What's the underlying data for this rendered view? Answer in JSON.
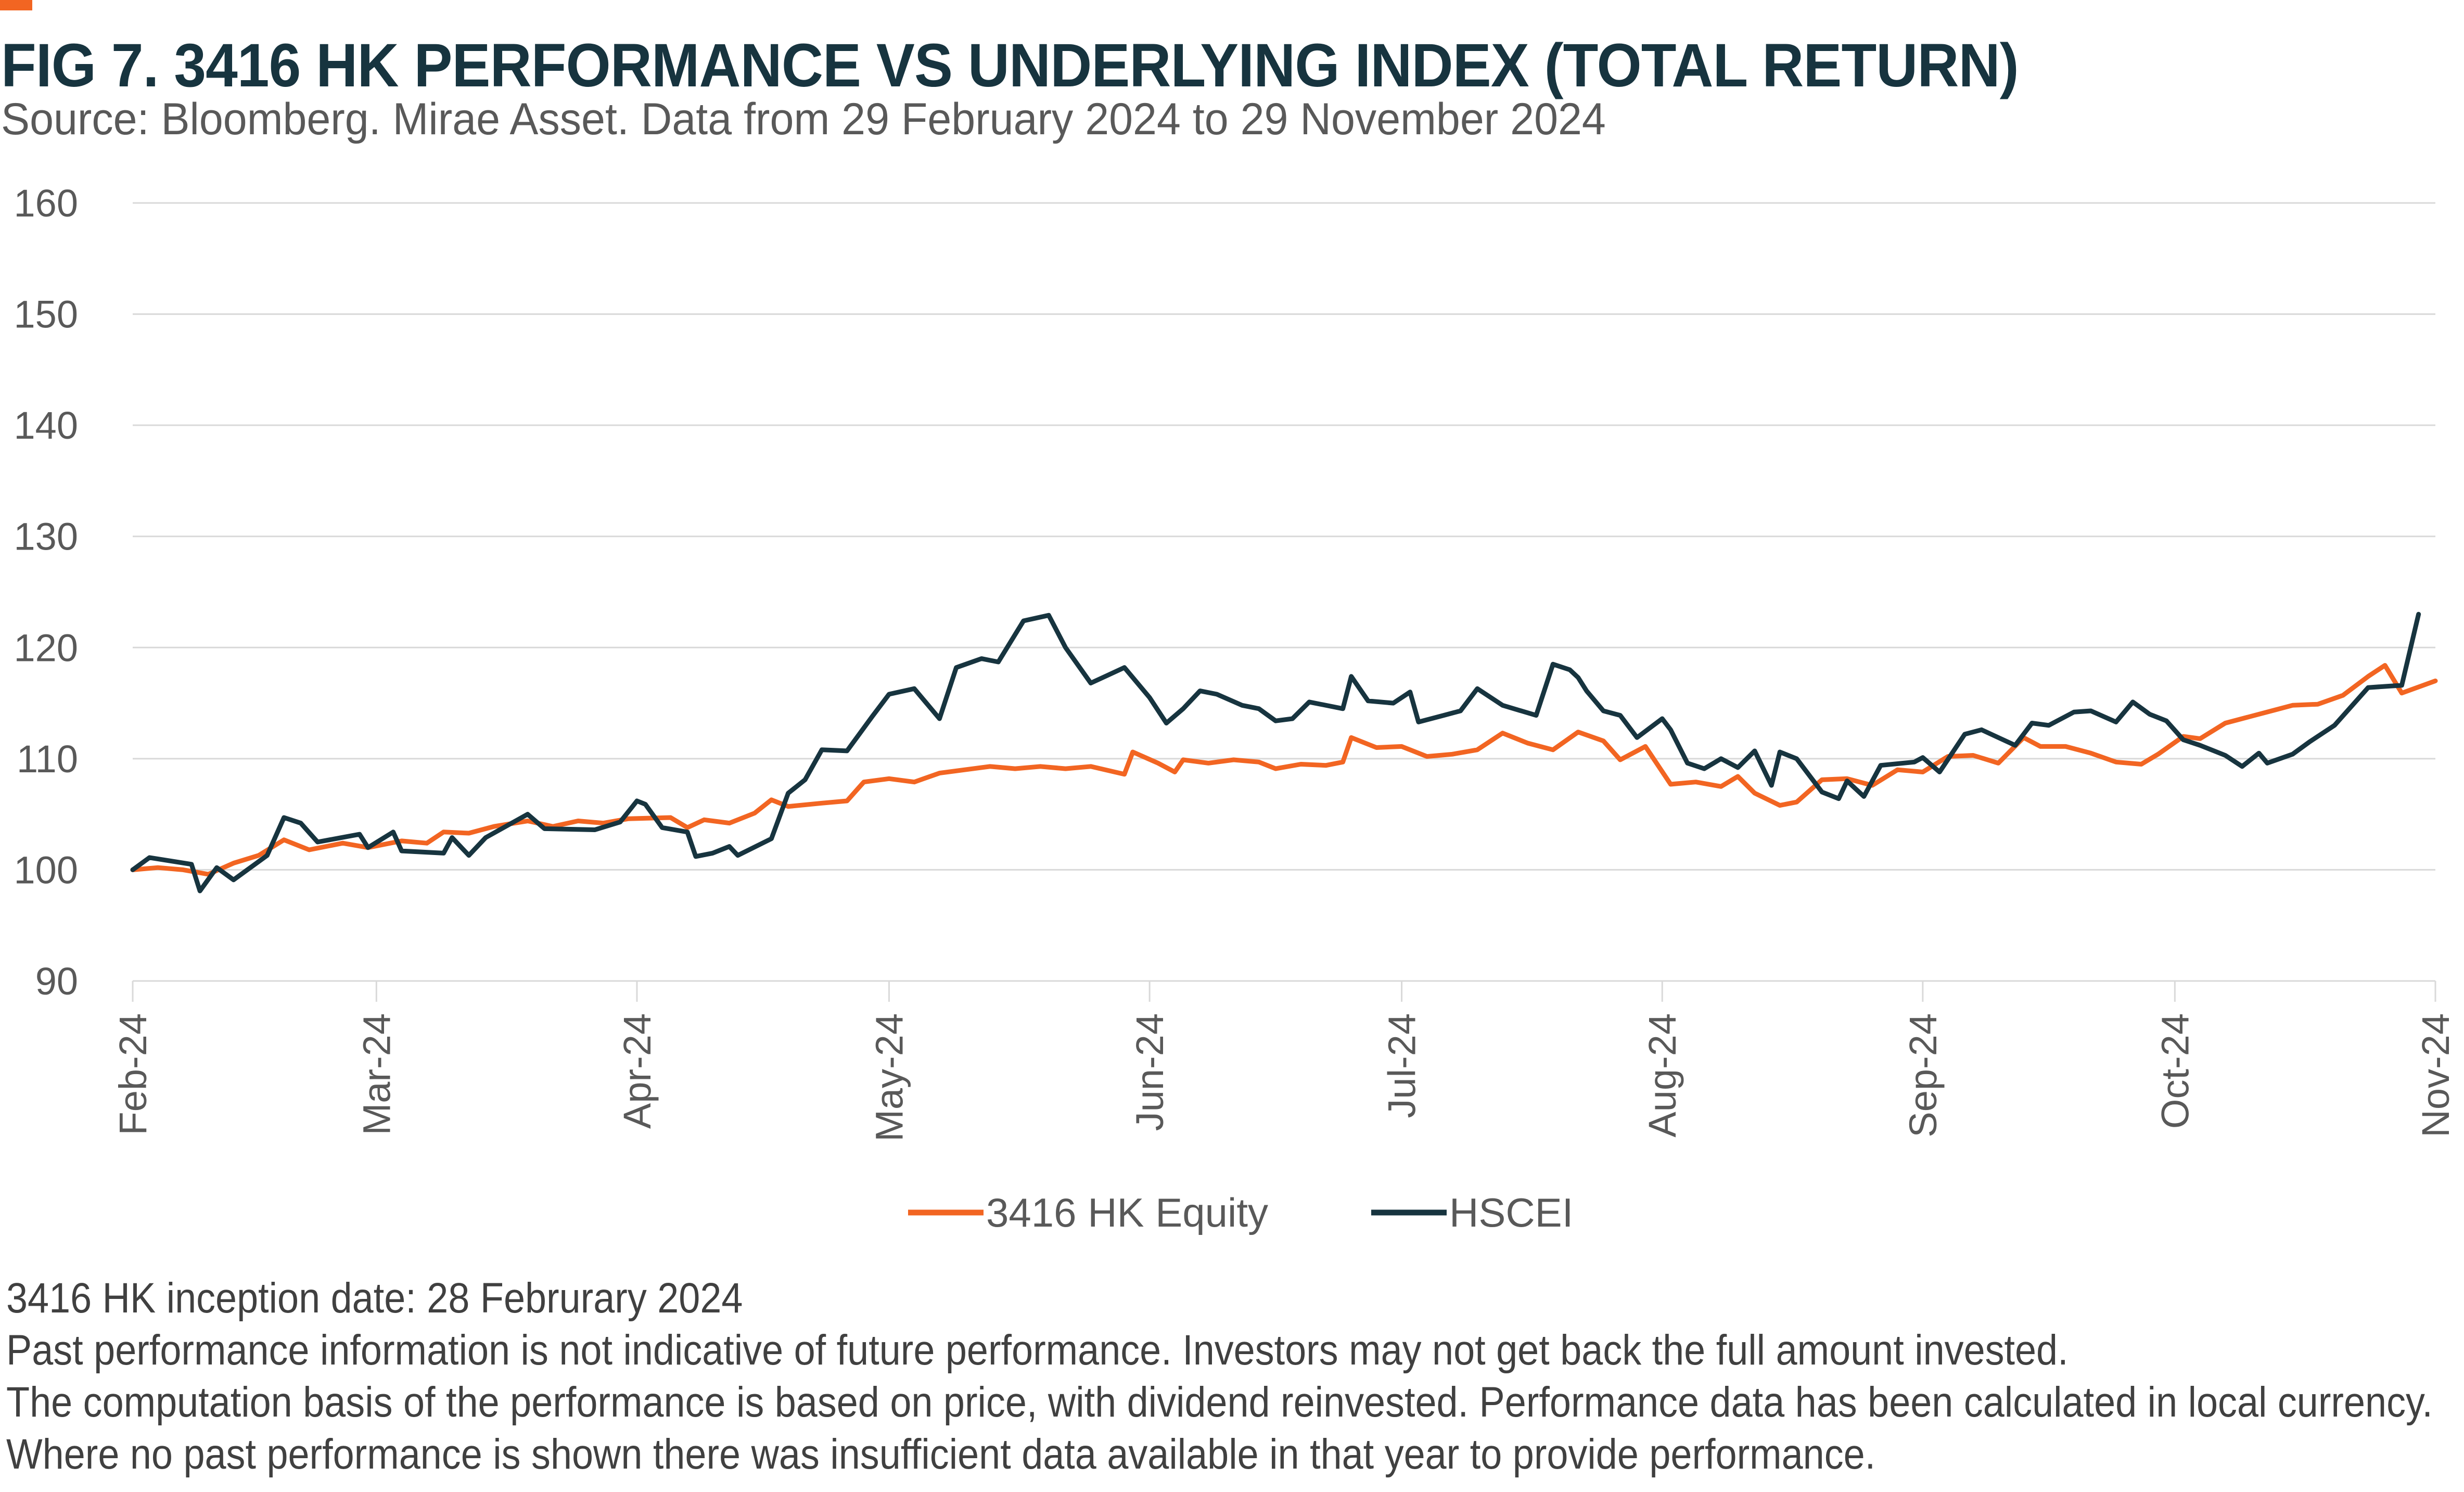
{
  "title": "FIG 7. 3416 HK PERFORMANCE VS UNDERLYING INDEX (TOTAL RETURN)",
  "subtitle": "Source: Bloomberg. Mirae Asset. Data from 29 February 2024 to 29 November 2024",
  "colors": {
    "accent": "#F26522",
    "equity": "#F26522",
    "index": "#17343F",
    "grid": "#D9D9D9",
    "text": "#595959"
  },
  "chart_data": {
    "type": "line",
    "title": "FIG 7. 3416 HK PERFORMANCE VS UNDERLYING INDEX (TOTAL RETURN)",
    "xlabel": "",
    "ylabel": "",
    "ylim": [
      90,
      160
    ],
    "yticks": [
      90,
      100,
      110,
      120,
      130,
      140,
      150,
      160
    ],
    "xlim": [
      "2024-02-29",
      "2024-11-29"
    ],
    "xticks": [
      {
        "date": "2024-02-29",
        "label": "Feb-24"
      },
      {
        "date": "2024-03-29",
        "label": "Mar-24"
      },
      {
        "date": "2024-04-29",
        "label": "Apr-24"
      },
      {
        "date": "2024-05-29",
        "label": "May-24"
      },
      {
        "date": "2024-06-29",
        "label": "Jun-24"
      },
      {
        "date": "2024-07-29",
        "label": "Jul-24"
      },
      {
        "date": "2024-08-29",
        "label": "Aug-24"
      },
      {
        "date": "2024-09-29",
        "label": "Sep-24"
      },
      {
        "date": "2024-10-29",
        "label": "Oct-24"
      },
      {
        "date": "2024-11-29",
        "label": "Nov-24"
      }
    ],
    "grid": true,
    "legend_position": "bottom",
    "series": [
      {
        "name": "3416 HK Equity",
        "color": "#F26522",
        "points": [
          [
            "2024-02-29",
            100.0
          ],
          [
            "2024-03-03",
            100.2
          ],
          [
            "2024-03-06",
            100.0
          ],
          [
            "2024-03-09",
            99.6
          ],
          [
            "2024-03-12",
            100.6
          ],
          [
            "2024-03-15",
            101.3
          ],
          [
            "2024-03-18",
            102.7
          ],
          [
            "2024-03-21",
            101.8
          ],
          [
            "2024-03-25",
            102.4
          ],
          [
            "2024-03-28",
            102.0
          ],
          [
            "2024-04-01",
            102.6
          ],
          [
            "2024-04-04",
            102.4
          ],
          [
            "2024-04-06",
            103.4
          ],
          [
            "2024-04-09",
            103.3
          ],
          [
            "2024-04-12",
            103.9
          ],
          [
            "2024-04-16",
            104.4
          ],
          [
            "2024-04-19",
            103.9
          ],
          [
            "2024-04-22",
            104.4
          ],
          [
            "2024-04-25",
            104.2
          ],
          [
            "2024-04-28",
            104.6
          ],
          [
            "2024-05-03",
            104.7
          ],
          [
            "2024-05-05",
            103.8
          ],
          [
            "2024-05-07",
            104.5
          ],
          [
            "2024-05-10",
            104.2
          ],
          [
            "2024-05-13",
            105.1
          ],
          [
            "2024-05-15",
            106.3
          ],
          [
            "2024-05-17",
            105.7
          ],
          [
            "2024-05-21",
            106.0
          ],
          [
            "2024-05-24",
            106.2
          ],
          [
            "2024-05-26",
            107.9
          ],
          [
            "2024-05-29",
            108.2
          ],
          [
            "2024-06-01",
            107.9
          ],
          [
            "2024-06-04",
            108.7
          ],
          [
            "2024-06-07",
            109.0
          ],
          [
            "2024-06-10",
            109.3
          ],
          [
            "2024-06-13",
            109.1
          ],
          [
            "2024-06-16",
            109.3
          ],
          [
            "2024-06-19",
            109.1
          ],
          [
            "2024-06-22",
            109.3
          ],
          [
            "2024-06-26",
            108.6
          ],
          [
            "2024-06-27",
            110.6
          ],
          [
            "2024-06-30",
            109.6
          ],
          [
            "2024-07-02",
            108.8
          ],
          [
            "2024-07-03",
            109.9
          ],
          [
            "2024-07-06",
            109.6
          ],
          [
            "2024-07-09",
            109.9
          ],
          [
            "2024-07-12",
            109.7
          ],
          [
            "2024-07-14",
            109.1
          ],
          [
            "2024-07-17",
            109.5
          ],
          [
            "2024-07-20",
            109.4
          ],
          [
            "2024-07-22",
            109.7
          ],
          [
            "2024-07-23",
            111.9
          ],
          [
            "2024-07-26",
            111.0
          ],
          [
            "2024-07-29",
            111.1
          ],
          [
            "2024-08-01",
            110.2
          ],
          [
            "2024-08-04",
            110.4
          ],
          [
            "2024-08-07",
            110.8
          ],
          [
            "2024-08-10",
            112.3
          ],
          [
            "2024-08-13",
            111.4
          ],
          [
            "2024-08-16",
            110.8
          ],
          [
            "2024-08-19",
            112.4
          ],
          [
            "2024-08-22",
            111.6
          ],
          [
            "2024-08-24",
            109.9
          ],
          [
            "2024-08-27",
            111.1
          ],
          [
            "2024-08-30",
            107.7
          ],
          [
            "2024-09-02",
            107.9
          ],
          [
            "2024-09-05",
            107.5
          ],
          [
            "2024-09-07",
            108.4
          ],
          [
            "2024-09-09",
            106.9
          ],
          [
            "2024-09-12",
            105.8
          ],
          [
            "2024-09-14",
            106.1
          ],
          [
            "2024-09-17",
            108.1
          ],
          [
            "2024-09-20",
            108.2
          ],
          [
            "2024-09-23",
            107.6
          ],
          [
            "2024-09-26",
            109.0
          ],
          [
            "2024-09-29",
            108.8
          ],
          [
            "2024-10-02",
            110.2
          ],
          [
            "2024-10-05",
            110.3
          ],
          [
            "2024-10-08",
            109.6
          ],
          [
            "2024-10-11",
            111.9
          ],
          [
            "2024-10-13",
            111.1
          ],
          [
            "2024-10-16",
            111.1
          ],
          [
            "2024-10-19",
            110.5
          ],
          [
            "2024-10-22",
            109.7
          ],
          [
            "2024-10-25",
            109.5
          ],
          [
            "2024-10-27",
            110.4
          ],
          [
            "2024-10-30",
            112.0
          ],
          [
            "2024-11-01",
            111.8
          ],
          [
            "2024-11-04",
            113.2
          ],
          [
            "2024-11-07",
            113.8
          ],
          [
            "2024-11-10",
            114.4
          ],
          [
            "2024-11-12",
            114.8
          ],
          [
            "2024-11-15",
            114.9
          ],
          [
            "2024-11-18",
            115.7
          ],
          [
            "2024-11-21",
            117.4
          ],
          [
            "2024-11-23",
            118.4
          ],
          [
            "2024-11-25",
            115.9
          ],
          [
            "2024-11-29",
            117.0
          ]
        ]
      },
      {
        "name": "HSCEI",
        "color": "#17343F",
        "points": [
          [
            "2024-02-29",
            100.0
          ],
          [
            "2024-03-02",
            101.1
          ],
          [
            "2024-03-07",
            100.5
          ],
          [
            "2024-03-08",
            98.1
          ],
          [
            "2024-03-10",
            100.2
          ],
          [
            "2024-03-12",
            99.1
          ],
          [
            "2024-03-16",
            101.3
          ],
          [
            "2024-03-18",
            104.7
          ],
          [
            "2024-03-20",
            104.2
          ],
          [
            "2024-03-22",
            102.5
          ],
          [
            "2024-03-27",
            103.2
          ],
          [
            "2024-03-28",
            102.0
          ],
          [
            "2024-03-31",
            103.4
          ],
          [
            "2024-04-01",
            101.7
          ],
          [
            "2024-04-06",
            101.5
          ],
          [
            "2024-04-07",
            102.9
          ],
          [
            "2024-04-09",
            101.3
          ],
          [
            "2024-04-11",
            102.9
          ],
          [
            "2024-04-16",
            105.0
          ],
          [
            "2024-04-18",
            103.7
          ],
          [
            "2024-04-24",
            103.6
          ],
          [
            "2024-04-27",
            104.3
          ],
          [
            "2024-04-29",
            106.2
          ],
          [
            "2024-04-30",
            105.9
          ],
          [
            "2024-05-02",
            103.8
          ],
          [
            "2024-05-05",
            103.4
          ],
          [
            "2024-05-06",
            101.2
          ],
          [
            "2024-05-08",
            101.5
          ],
          [
            "2024-05-10",
            102.1
          ],
          [
            "2024-05-11",
            101.3
          ],
          [
            "2024-05-15",
            102.8
          ],
          [
            "2024-05-17",
            106.9
          ],
          [
            "2024-05-19",
            108.1
          ],
          [
            "2024-05-21",
            110.8
          ],
          [
            "2024-05-24",
            110.7
          ],
          [
            "2024-05-27",
            113.8
          ],
          [
            "2024-05-29",
            115.8
          ],
          [
            "2024-06-01",
            116.3
          ],
          [
            "2024-06-04",
            113.6
          ],
          [
            "2024-06-06",
            118.2
          ],
          [
            "2024-06-09",
            119.0
          ],
          [
            "2024-06-11",
            118.7
          ],
          [
            "2024-06-14",
            122.4
          ],
          [
            "2024-06-17",
            122.9
          ],
          [
            "2024-06-19",
            120.0
          ],
          [
            "2024-06-22",
            116.8
          ],
          [
            "2024-06-24",
            117.5
          ],
          [
            "2024-06-26",
            118.2
          ],
          [
            "2024-06-29",
            115.5
          ],
          [
            "2024-07-01",
            113.2
          ],
          [
            "2024-07-03",
            114.5
          ],
          [
            "2024-07-05",
            116.1
          ],
          [
            "2024-07-07",
            115.8
          ],
          [
            "2024-07-10",
            114.8
          ],
          [
            "2024-07-12",
            114.5
          ],
          [
            "2024-07-14",
            113.4
          ],
          [
            "2024-07-16",
            113.6
          ],
          [
            "2024-07-18",
            115.1
          ],
          [
            "2024-07-22",
            114.5
          ],
          [
            "2024-07-23",
            117.4
          ],
          [
            "2024-07-25",
            115.2
          ],
          [
            "2024-07-28",
            115.0
          ],
          [
            "2024-07-30",
            116.0
          ],
          [
            "2024-07-31",
            113.3
          ],
          [
            "2024-08-03",
            113.9
          ],
          [
            "2024-08-05",
            114.3
          ],
          [
            "2024-08-07",
            116.3
          ],
          [
            "2024-08-10",
            114.8
          ],
          [
            "2024-08-14",
            113.9
          ],
          [
            "2024-08-16",
            118.5
          ],
          [
            "2024-08-18",
            118.0
          ],
          [
            "2024-08-19",
            117.3
          ],
          [
            "2024-08-20",
            116.1
          ],
          [
            "2024-08-22",
            114.3
          ],
          [
            "2024-08-24",
            113.9
          ],
          [
            "2024-08-26",
            111.9
          ],
          [
            "2024-08-29",
            113.6
          ],
          [
            "2024-08-30",
            112.6
          ],
          [
            "2024-09-01",
            109.6
          ],
          [
            "2024-09-03",
            109.1
          ],
          [
            "2024-09-05",
            110.0
          ],
          [
            "2024-09-07",
            109.2
          ],
          [
            "2024-09-09",
            110.7
          ],
          [
            "2024-09-11",
            107.6
          ],
          [
            "2024-09-12",
            110.6
          ],
          [
            "2024-09-14",
            110.0
          ],
          [
            "2024-09-17",
            107.0
          ],
          [
            "2024-09-19",
            106.4
          ],
          [
            "2024-09-20",
            108.0
          ],
          [
            "2024-09-22",
            106.6
          ],
          [
            "2024-09-24",
            109.4
          ],
          [
            "2024-09-28",
            109.7
          ],
          [
            "2024-09-29",
            110.1
          ],
          [
            "2024-10-01",
            108.8
          ],
          [
            "2024-10-04",
            112.2
          ],
          [
            "2024-10-06",
            112.6
          ],
          [
            "2024-10-08",
            111.9
          ],
          [
            "2024-10-10",
            111.2
          ],
          [
            "2024-10-12",
            113.2
          ],
          [
            "2024-10-14",
            113.0
          ],
          [
            "2024-10-17",
            114.2
          ],
          [
            "2024-10-19",
            114.3
          ],
          [
            "2024-10-22",
            113.3
          ],
          [
            "2024-10-24",
            115.1
          ],
          [
            "2024-10-26",
            114.0
          ],
          [
            "2024-10-28",
            113.4
          ],
          [
            "2024-10-30",
            111.7
          ],
          [
            "2024-11-01",
            111.2
          ],
          [
            "2024-11-04",
            110.3
          ],
          [
            "2024-11-06",
            109.3
          ],
          [
            "2024-11-08",
            110.5
          ],
          [
            "2024-11-09",
            109.6
          ],
          [
            "2024-11-12",
            110.4
          ],
          [
            "2024-11-14",
            111.5
          ],
          [
            "2024-11-17",
            113.0
          ],
          [
            "2024-11-21",
            116.4
          ],
          [
            "2024-11-23",
            116.5
          ],
          [
            "2024-11-25",
            116.6
          ],
          [
            "2024-11-27",
            123.0
          ]
        ]
      }
    ]
  },
  "legend": {
    "items": [
      "3416 HK Equity",
      "HSCEI"
    ]
  },
  "footnotes": [
    "3416 HK inception date: 28 Februrary 2024",
    "Past performance information is not indicative of future performance. Investors may not get back the full amount invested.",
    "The computation basis of the performance is based on price, with dividend reinvested. Performance data has been calculated in local currency.",
    "Where no past performance is shown there was insufficient data available in that year to provide performance."
  ]
}
